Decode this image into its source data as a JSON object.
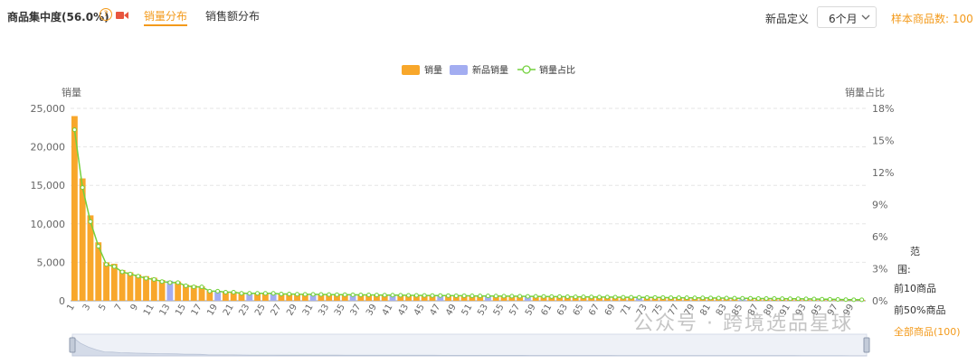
{
  "header": {
    "title": "商品集中度(56.0%)",
    "help_glyph": "?",
    "tabs": [
      "销量分布",
      "销售额分布"
    ],
    "new_def_label": "新品定义",
    "period_value": "6个月",
    "sample_text": "样本商品数: 100"
  },
  "side_panel": {
    "range_label_1": "范",
    "range_label_2": "围:",
    "option_top10": "前10商品",
    "option_top50pct": "前50%商品",
    "option_all": "全部商品(100)"
  },
  "watermark": "公众号 · 跨境选品星球",
  "colors": {
    "bar": "#f8a72b",
    "new_bar": "#a3adf1",
    "line": "#73d13d",
    "accent": "#f39a1b"
  },
  "chart_data": {
    "type": "bar",
    "legend": [
      "销量",
      "新品销量",
      "销量占比"
    ],
    "legend_placement": "top-center",
    "ylabel": "销量",
    "y2label": "销量占比",
    "ylim": [
      0,
      25000
    ],
    "y_ticks": [
      "0",
      "5,000",
      "10,000",
      "15,000",
      "20,000",
      "25,000"
    ],
    "y2lim": [
      0,
      18
    ],
    "y2_ticks": [
      "0%",
      "3%",
      "6%",
      "9%",
      "12%",
      "15%",
      "18%"
    ],
    "x_tick_labels": [
      "1",
      "3",
      "5",
      "7",
      "9",
      "11",
      "13",
      "15",
      "17",
      "19",
      "21",
      "23",
      "25",
      "27",
      "29",
      "31",
      "33",
      "35",
      "37",
      "39",
      "41",
      "43",
      "45",
      "47",
      "49",
      "51",
      "53",
      "55",
      "57",
      "59",
      "61",
      "63",
      "65",
      "67",
      "69",
      "71",
      "73",
      "75",
      "77",
      "79",
      "81",
      "83",
      "85",
      "87",
      "89",
      "91",
      "93",
      "95",
      "97",
      "99"
    ],
    "new_product_ranks": [
      13,
      19,
      23,
      26,
      31,
      36,
      41,
      47,
      53,
      58,
      72,
      85
    ],
    "series": [
      {
        "name": "销量",
        "values": [
          24000,
          15900,
          11100,
          7600,
          5000,
          4800,
          4000,
          3700,
          3400,
          3200,
          3000,
          2700,
          2600,
          2500,
          2100,
          2000,
          1900,
          1300,
          1300,
          1200,
          1200,
          1100,
          1000,
          1000,
          1000,
          1000,
          950,
          950,
          920,
          900,
          900,
          880,
          870,
          860,
          850,
          840,
          830,
          820,
          810,
          800,
          790,
          780,
          770,
          760,
          750,
          740,
          730,
          720,
          710,
          700,
          690,
          680,
          670,
          660,
          650,
          640,
          630,
          620,
          610,
          600,
          590,
          580,
          570,
          560,
          550,
          540,
          530,
          520,
          510,
          500,
          490,
          480,
          470,
          460,
          450,
          440,
          430,
          420,
          410,
          400,
          390,
          380,
          370,
          360,
          350,
          340,
          330,
          320,
          310,
          300,
          290,
          280,
          270,
          250,
          230,
          210,
          190,
          170,
          150,
          130
        ]
      },
      {
        "name": "销量占比",
        "values": [
          16.0,
          10.6,
          7.4,
          5.1,
          3.4,
          3.2,
          2.7,
          2.5,
          2.3,
          2.1,
          2.0,
          1.8,
          1.7,
          1.7,
          1.4,
          1.3,
          1.3,
          0.9,
          0.9,
          0.8,
          0.8,
          0.7,
          0.7,
          0.7,
          0.7,
          0.7,
          0.63,
          0.63,
          0.61,
          0.6,
          0.6,
          0.59,
          0.58,
          0.57,
          0.57,
          0.56,
          0.55,
          0.55,
          0.54,
          0.53,
          0.53,
          0.52,
          0.51,
          0.51,
          0.5,
          0.49,
          0.49,
          0.48,
          0.47,
          0.47,
          0.46,
          0.45,
          0.45,
          0.44,
          0.43,
          0.43,
          0.42,
          0.41,
          0.41,
          0.4,
          0.39,
          0.39,
          0.38,
          0.37,
          0.37,
          0.36,
          0.35,
          0.35,
          0.34,
          0.33,
          0.33,
          0.32,
          0.31,
          0.31,
          0.3,
          0.29,
          0.29,
          0.28,
          0.27,
          0.27,
          0.26,
          0.25,
          0.25,
          0.24,
          0.23,
          0.23,
          0.21,
          0.21,
          0.21,
          0.2,
          0.19,
          0.19,
          0.18,
          0.17,
          0.15,
          0.14,
          0.13,
          0.11,
          0.1,
          0.09
        ]
      }
    ]
  }
}
